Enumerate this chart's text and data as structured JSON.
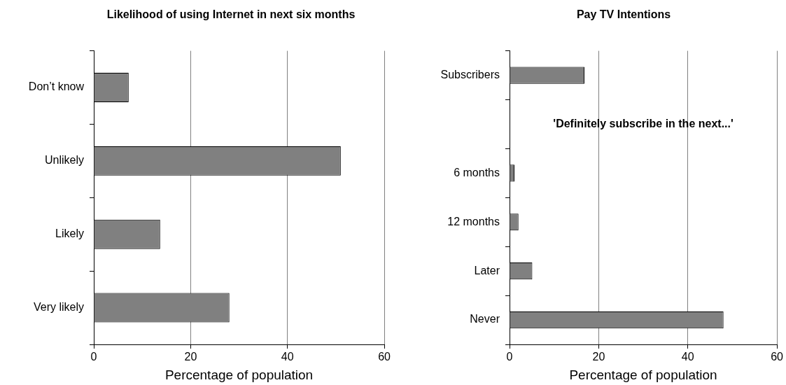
{
  "chart_data": [
    {
      "type": "bar",
      "orientation": "horizontal",
      "title": "Likelihood of using Internet in next six months",
      "xlabel": "Percentage of population",
      "categories": [
        "Don’t know",
        "Unlikely",
        "Likely",
        "Very likely"
      ],
      "values": [
        7.2,
        51,
        13.7,
        28
      ],
      "color": "#808080",
      "xlim": [
        0,
        60
      ],
      "xticks": [
        0,
        20,
        40,
        60
      ],
      "grid": "x"
    },
    {
      "type": "bar",
      "orientation": "horizontal",
      "title": "Pay TV Intentions",
      "xlabel": "Percentage of population",
      "categories": [
        "Subscribers",
        null,
        "6 months",
        "12 months",
        "Later",
        "Never"
      ],
      "values": [
        16.8,
        null,
        1.1,
        2,
        5.1,
        48
      ],
      "color": "#808080",
      "xlim": [
        0,
        60
      ],
      "xticks": [
        0,
        20,
        40,
        60
      ],
      "grid": "x",
      "annotations": [
        "'Definitely subscribe in the next...'"
      ]
    }
  ]
}
